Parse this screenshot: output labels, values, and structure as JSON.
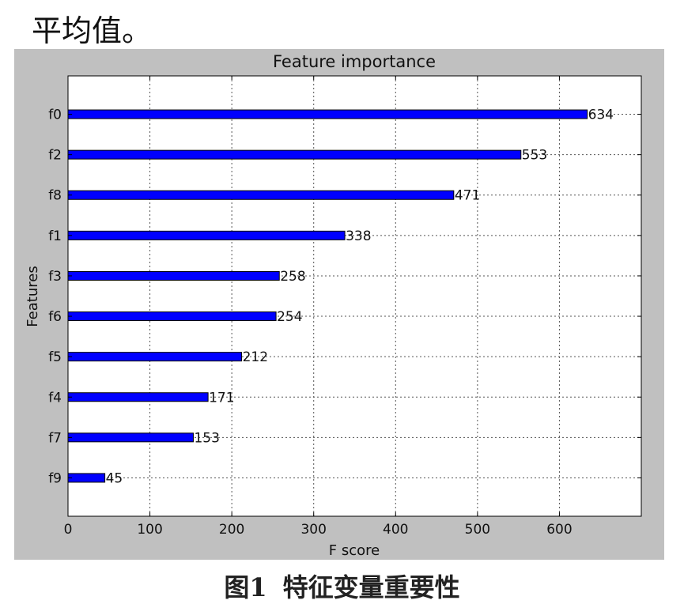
{
  "top_text": "平均值。",
  "caption": {
    "label": "图1",
    "title": "特征变量重要性"
  },
  "chart_data": {
    "type": "bar",
    "orientation": "horizontal",
    "title": "Feature importance",
    "xlabel": "F score",
    "ylabel": "Features",
    "categories": [
      "f0",
      "f2",
      "f8",
      "f1",
      "f3",
      "f6",
      "f5",
      "f4",
      "f7",
      "f9"
    ],
    "values": [
      634,
      553,
      471,
      338,
      258,
      254,
      212,
      171,
      153,
      45
    ],
    "xlim": [
      0,
      700
    ],
    "xticks": [
      0,
      100,
      200,
      300,
      400,
      500,
      600
    ],
    "grid": true,
    "bar_color": "#0000ff",
    "figure_background": "#c0c0c0",
    "data_labels": true
  }
}
